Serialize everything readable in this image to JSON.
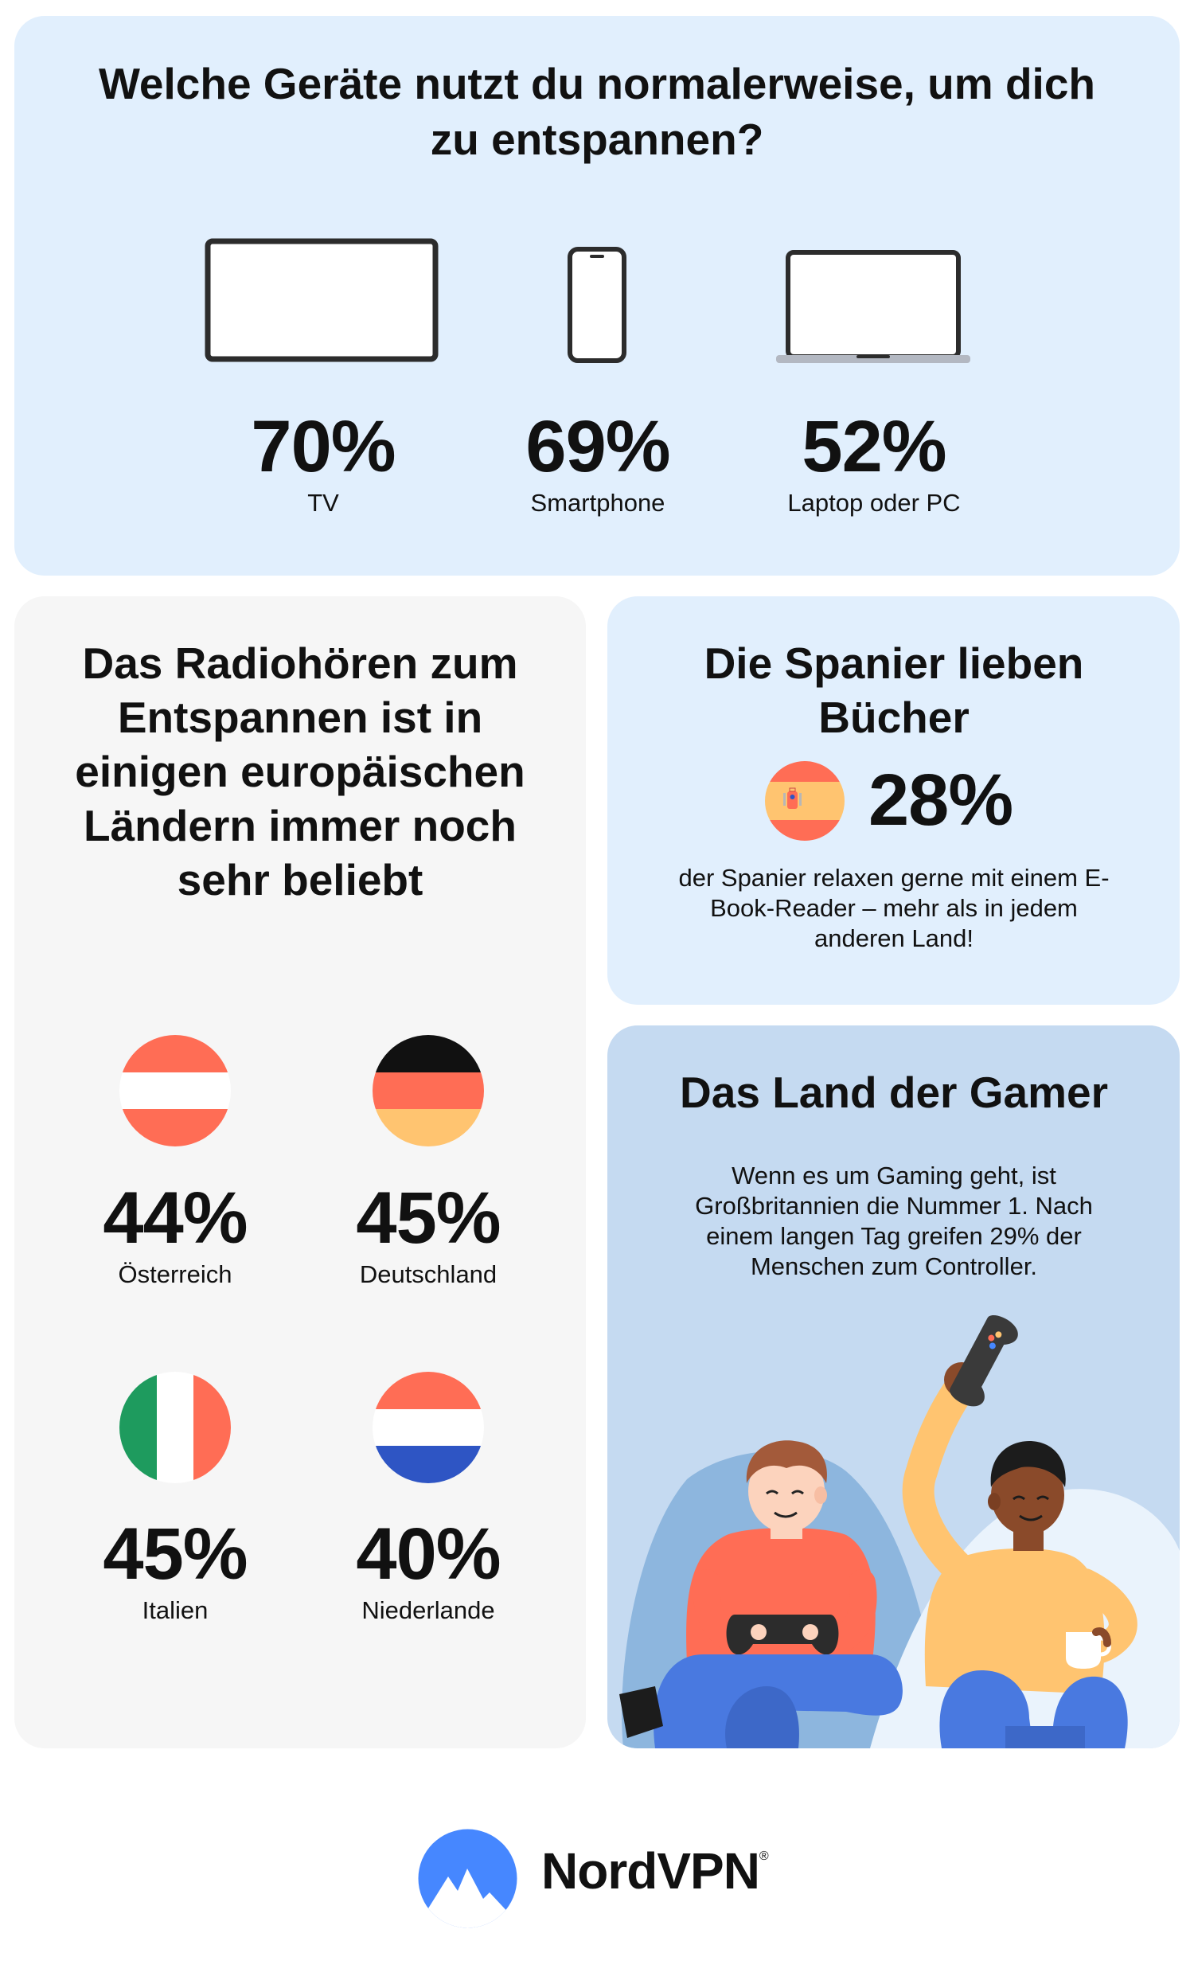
{
  "devices": {
    "title": "Welche Geräte nutzt du normalerweise, um dich zu entspannen?",
    "items": [
      {
        "value": "70%",
        "label": "TV",
        "icon": "tv-icon"
      },
      {
        "value": "69%",
        "label": "Smartphone",
        "icon": "smartphone-icon"
      },
      {
        "value": "52%",
        "label": "Laptop oder PC",
        "icon": "laptop-icon"
      }
    ]
  },
  "radio": {
    "title": "Das Radiohören zum Entspannen ist in einigen europäischen Ländern immer noch sehr beliebt",
    "countries": [
      {
        "value": "44%",
        "label": "Österreich",
        "icon": "austria-flag-icon"
      },
      {
        "value": "45%",
        "label": "Deutschland",
        "icon": "germany-flag-icon"
      },
      {
        "value": "45%",
        "label": "Italien",
        "icon": "italy-flag-icon"
      },
      {
        "value": "40%",
        "label": "Niederlande",
        "icon": "netherlands-flag-icon"
      }
    ]
  },
  "spain": {
    "title": "Die Spanier lieben Bücher",
    "value": "28%",
    "text": "der Spanier relaxen gerne mit einem E-Book-Reader – mehr als in jedem anderen Land!",
    "icon": "spain-flag-icon"
  },
  "gamer": {
    "title": "Das Land der Gamer",
    "text": "Wenn es um Gaming geht, ist Großbritannien die Nummer 1. Nach einem langen Tag greifen 29% der Menschen zum Controller.",
    "illustration": "gamers-illustration"
  },
  "brand": {
    "name": "NordVPN",
    "mark": "®",
    "icon": "nordvpn-logo-icon"
  },
  "colors": {
    "light_blue": "#e1effd",
    "gamer_blue": "#c5daf1",
    "grey_card": "#f6f6f6",
    "brand_blue": "#4687ff"
  }
}
